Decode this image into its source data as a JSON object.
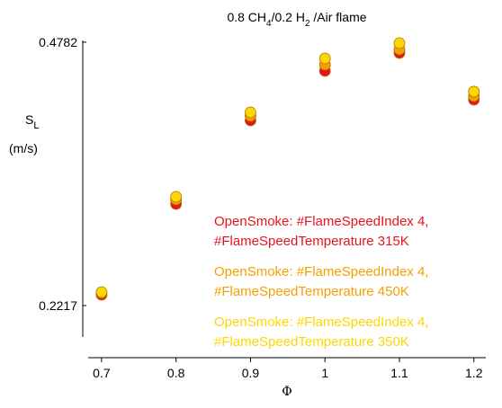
{
  "chart_data": {
    "type": "scatter",
    "title_parts": [
      "0.8 CH",
      "4",
      "/0.2 H",
      "2",
      " /Air flame"
    ],
    "ylabel_parts": [
      "S",
      "L",
      "(m/s)"
    ],
    "xlabel": "Φ",
    "xlim": [
      0.682,
      1.216
    ],
    "xticks": [
      0.7,
      0.8,
      0.9,
      1,
      1.1,
      1.2
    ],
    "ylim": [
      0.1709,
      0.4843
    ],
    "yticks": [
      0.2217,
      0.4782
    ],
    "legend": "lower right",
    "series": [
      {
        "name": "OpenSmoke: #FlameSpeedIndex 4, #FlameSpeedTemperature 315K",
        "color": "#e8141c",
        "x": [
          0.7,
          0.8,
          0.9,
          1,
          1.1,
          1.2
        ],
        "values": [
          0.2322,
          0.3206,
          0.402,
          0.4502,
          0.4677,
          0.4222
        ]
      },
      {
        "name": "OpenSmoke: #FlameSpeedIndex 4, #FlameSpeedTemperature 450K",
        "color": "#f5a000",
        "x": [
          0.7,
          0.8,
          0.9,
          1,
          1.1,
          1.2
        ],
        "values": [
          0.234,
          0.325,
          0.4064,
          0.4563,
          0.4712,
          0.4257
        ]
      },
      {
        "name": "OpenSmoke: #FlameSpeedIndex 4, #FlameSpeedTemperature 350K",
        "color": "#ffd700",
        "x": [
          0.7,
          0.8,
          0.9,
          1,
          1.1,
          1.2
        ],
        "values": [
          0.2348,
          0.3276,
          0.4099,
          0.4624,
          0.4773,
          0.4301
        ]
      }
    ]
  }
}
